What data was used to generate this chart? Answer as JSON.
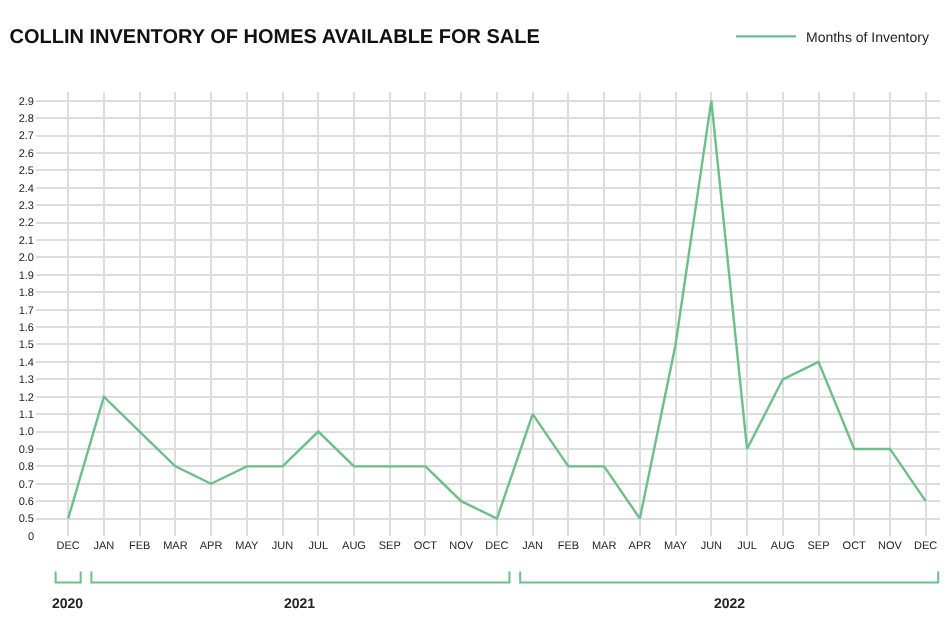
{
  "chart_data": {
    "type": "line",
    "title": "COLLIN INVENTORY OF HOMES AVAILABLE FOR SALE",
    "categories": [
      "DEC",
      "JAN",
      "FEB",
      "MAR",
      "APR",
      "MAY",
      "JUN",
      "JUL",
      "AUG",
      "SEP",
      "OCT",
      "NOV",
      "DEC",
      "JAN",
      "FEB",
      "MAR",
      "APR",
      "MAY",
      "JUN",
      "JUL",
      "AUG",
      "SEP",
      "OCT",
      "NOV",
      "DEC"
    ],
    "series": [
      {
        "name": "Months of Inventory",
        "color": "#6cbf88",
        "values": [
          0.5,
          1.2,
          1.0,
          0.8,
          0.7,
          0.8,
          0.8,
          1.0,
          0.8,
          0.8,
          0.8,
          0.6,
          0.5,
          1.1,
          0.8,
          0.8,
          0.5,
          1.5,
          2.9,
          0.9,
          1.3,
          1.4,
          0.9,
          0.9,
          0.6
        ]
      }
    ],
    "ylim": [
      0.4,
      2.95
    ],
    "yticks": [
      {
        "value": 0.4,
        "label": "0"
      },
      0.5,
      0.6,
      0.7,
      0.8,
      0.9,
      {
        "value": 1.0,
        "label": "1.0"
      },
      1.1,
      1.2,
      1.3,
      1.4,
      1.5,
      1.6,
      1.7,
      1.8,
      1.9,
      {
        "value": 2.0,
        "label": "2.0"
      },
      2.1,
      2.2,
      2.3,
      2.4,
      2.5,
      2.6,
      2.7,
      2.8,
      2.9
    ],
    "annotations": [
      "2020",
      "2021",
      "2022"
    ],
    "grid": true,
    "legend": "top right",
    "marker": "none",
    "line_style": "solid"
  }
}
